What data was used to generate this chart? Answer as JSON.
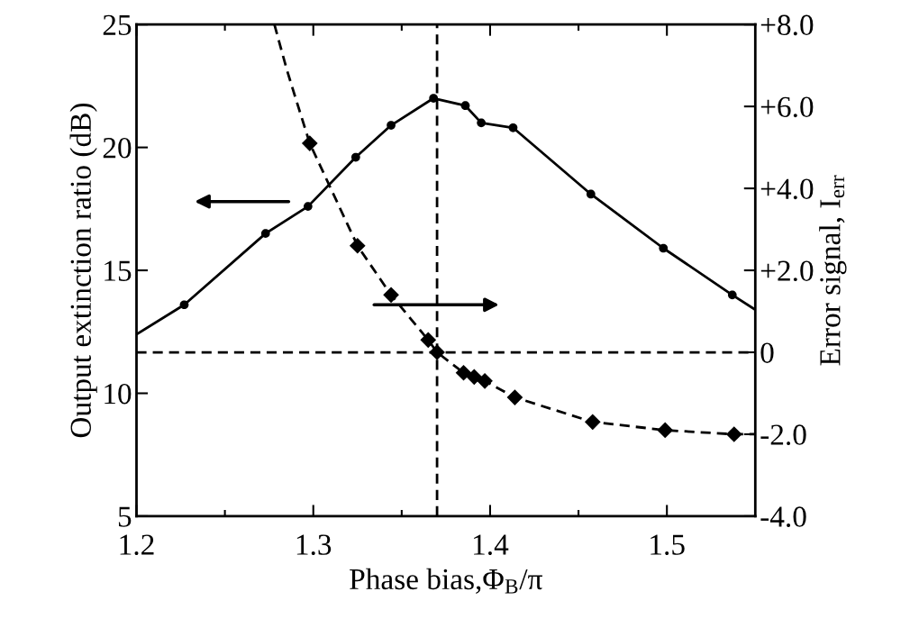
{
  "chart_data": {
    "type": "line",
    "xlabel": "Phase bias,Φ$_{B}$/π",
    "ylabel": "Output extinction ratio (dB)",
    "y2label": "Error signal, I$_{err}$",
    "xlim": [
      1.2,
      1.55
    ],
    "xticks": [
      1.2,
      {
        "value": 1.25,
        "label": null
      },
      1.3,
      {
        "value": 1.35,
        "label": null
      },
      1.4,
      {
        "value": 1.45,
        "label": null
      },
      1.5
    ],
    "ylim": [
      5,
      25
    ],
    "yticks": [
      5,
      10,
      15,
      20,
      25
    ],
    "y2lim": [
      -4,
      8
    ],
    "y2ticks": [
      {
        "value": 8,
        "label": "+8.0"
      },
      {
        "value": 6,
        "label": "+6.0"
      },
      {
        "value": 4,
        "label": "+4.0"
      },
      {
        "value": 2,
        "label": "+2.0"
      },
      0,
      {
        "value": -2,
        "label": "-2.0"
      },
      {
        "value": -4,
        "label": "-4.0"
      }
    ],
    "grid": false,
    "series": [
      {
        "color": "#000000",
        "line_style": "solid",
        "marker": "none",
        "x": [
          1.2,
          1.227,
          1.273,
          1.297,
          1.324,
          1.344,
          1.368,
          1.386,
          1.395,
          1.413,
          1.457,
          1.498,
          1.537,
          1.55
        ],
        "values": [
          12.4,
          13.6,
          16.5,
          17.6,
          19.6,
          20.9,
          22.0,
          21.7,
          21.0,
          20.8,
          18.1,
          15.9,
          14.0,
          13.4
        ]
      },
      {
        "type": "scatter",
        "color": "#000000",
        "marker": "circle",
        "x": [
          1.227,
          1.273,
          1.297,
          1.324,
          1.344,
          1.368,
          1.386,
          1.395,
          1.413,
          1.457,
          1.498,
          1.537
        ],
        "values": [
          13.6,
          16.5,
          17.6,
          19.6,
          20.9,
          22.0,
          21.7,
          21.0,
          20.8,
          18.1,
          15.9,
          14.0
        ]
      },
      {
        "axis": "y2",
        "color": "#000000",
        "line_style": "dashed",
        "marker": "none",
        "x": [
          1.278,
          1.285,
          1.29,
          1.298,
          1.325,
          1.344,
          1.365,
          1.37,
          1.385,
          1.391,
          1.397,
          1.414,
          1.458,
          1.499,
          1.538,
          1.55
        ],
        "values": [
          8.0,
          6.9,
          6.2,
          5.1,
          2.6,
          1.4,
          0.3,
          0.0,
          -0.5,
          -0.6,
          -0.7,
          -1.1,
          -1.7,
          -1.9,
          -2.0,
          -2.0
        ]
      },
      {
        "type": "scatter",
        "axis": "y2",
        "color": "#000000",
        "marker": "diamond",
        "x": [
          1.298,
          1.325,
          1.344,
          1.365,
          1.37,
          1.385,
          1.391,
          1.397,
          1.414,
          1.458,
          1.499,
          1.538
        ],
        "values": [
          5.1,
          2.6,
          1.4,
          0.3,
          0.0,
          -0.5,
          -0.6,
          -0.7,
          -1.1,
          -1.7,
          -1.9,
          -2.0
        ]
      }
    ],
    "ref_lines": [
      {
        "axis": "x",
        "value": 1.37,
        "color": "#000000",
        "line_style": "dashed"
      },
      {
        "axis": "y2",
        "value": 0,
        "color": "#000000",
        "line_style": "dashed"
      }
    ]
  }
}
